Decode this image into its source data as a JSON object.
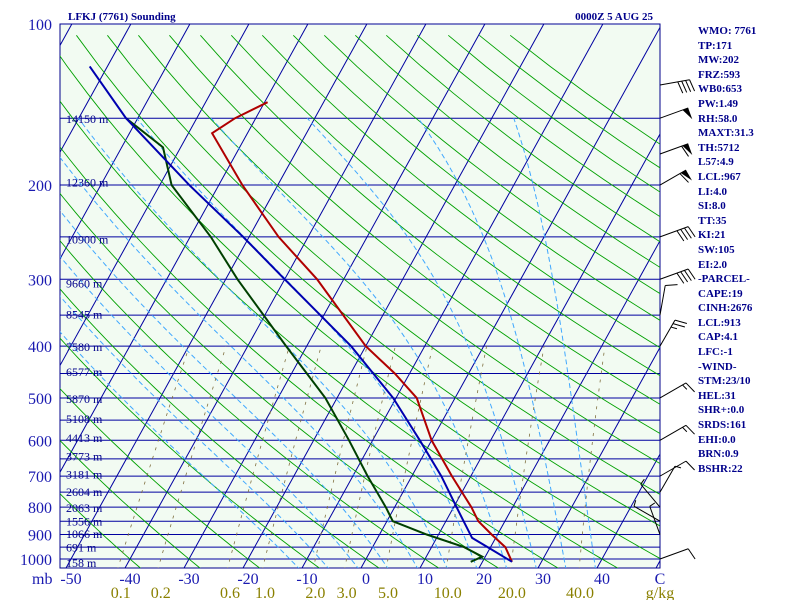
{
  "header": {
    "station_title": "LFKJ (7761) Sounding",
    "time_title": "0000Z  5 AUG 25"
  },
  "indices": [
    "WMO: 7761",
    "TP:171",
    "MW:202",
    "FRZ:593",
    "WB0:653",
    "PW:1.49",
    "RH:58.0",
    "MAXT:31.3",
    "TH:5712",
    "L57:4.9",
    "LCL:967",
    "LI:4.0",
    "SI:8.0",
    "TT:35",
    "KI:21",
    "SW:105",
    "EI:2.0",
    "-PARCEL-",
    "CAPE:19",
    "CINH:2676",
    "LCL:913",
    "CAP:4.1",
    "LFC:-1",
    "-WIND-",
    "STM:23/10",
    "HEL:31",
    "SHR+:0.0",
    "SRDS:161",
    "EHI:0.0",
    "BRN:0.9",
    "BSHR:22"
  ],
  "axis_labels": {
    "pressure_unit": "mb",
    "mixing_ratio_unit": "g/kg"
  },
  "colors": {
    "frame": "#00008b",
    "isobar": "#0000a0",
    "isotherm": "#0000a0",
    "dry_adiabat": "#00a000",
    "moist_adiabat": "#40a8ff",
    "mixing_ratio": "#807040",
    "temperature": "#b00000",
    "dewpoint": "#004000",
    "parcel": "#0000b0",
    "wind_barb": "#000000",
    "plot_background": "#f2fbf2"
  },
  "chart_data": {
    "type": "line",
    "title": "LFKJ (7761) Sounding",
    "subtitle": "0000Z  5 AUG 25",
    "diagram": "skew-T log-P",
    "pressure_range_hPa": [
      1000,
      100
    ],
    "pressure_ticks": [
      "1000",
      "900",
      "800",
      "700",
      "600",
      "500",
      "400",
      "300",
      "200",
      "100"
    ],
    "temperature_ticks": [
      "-50",
      "-40",
      "-30",
      "-20",
      "-10",
      "0",
      "10",
      "20",
      "30",
      "40",
      "C"
    ],
    "mixing_ratio_ticks": [
      "0.1",
      "0.2",
      "0.6",
      "1.0",
      "2.0",
      "3.0",
      "5.0",
      "10.0",
      "20.0",
      "40.0"
    ],
    "height_labels": [
      {
        "p": 1012,
        "label": "158 m"
      },
      {
        "p": 947,
        "label": "691 m"
      },
      {
        "p": 895,
        "label": "1066 m"
      },
      {
        "p": 847,
        "label": "1556 m"
      },
      {
        "p": 800,
        "label": "2063 m"
      },
      {
        "p": 746,
        "label": "2604 m"
      },
      {
        "p": 692,
        "label": "3181 m"
      },
      {
        "p": 640,
        "label": "3773 m"
      },
      {
        "p": 592,
        "label": "4413 m"
      },
      {
        "p": 545,
        "label": "5108 m"
      },
      {
        "p": 500,
        "label": "5870 m"
      },
      {
        "p": 445,
        "label": "6577 m"
      },
      {
        "p": 400,
        "label": "7580 m"
      },
      {
        "p": 348,
        "label": "8545 m"
      },
      {
        "p": 304,
        "label": "9660 m"
      },
      {
        "p": 252,
        "label": "10900 m"
      },
      {
        "p": 197,
        "label": "12360 m"
      },
      {
        "p": 150,
        "label": "14150 m"
      }
    ],
    "series": [
      {
        "key": "temperature",
        "points": [
          {
            "p": 1012,
            "t": 25.0
          },
          {
            "p": 950,
            "t": 22.5
          },
          {
            "p": 900,
            "t": 19.0
          },
          {
            "p": 850,
            "t": 15.5
          },
          {
            "p": 800,
            "t": 13.0
          },
          {
            "p": 700,
            "t": 6.8
          },
          {
            "p": 600,
            "t": 0.0
          },
          {
            "p": 500,
            "t": -6.5
          },
          {
            "p": 450,
            "t": -12.5
          },
          {
            "p": 400,
            "t": -20.0
          },
          {
            "p": 300,
            "t": -34.5
          },
          {
            "p": 250,
            "t": -45.0
          },
          {
            "p": 200,
            "t": -56.0
          },
          {
            "p": 160,
            "t": -66.0
          },
          {
            "p": 150,
            "t": -63.5
          },
          {
            "p": 140,
            "t": -59.5
          }
        ]
      },
      {
        "key": "dewpoint",
        "points": [
          {
            "p": 1012,
            "t": 18.0
          },
          {
            "p": 990,
            "t": 19.5
          },
          {
            "p": 950,
            "t": 15.5
          },
          {
            "p": 900,
            "t": 8.0
          },
          {
            "p": 850,
            "t": 1.0
          },
          {
            "p": 800,
            "t": -1.5
          },
          {
            "p": 700,
            "t": -7.5
          },
          {
            "p": 600,
            "t": -14.0
          },
          {
            "p": 500,
            "t": -22.0
          },
          {
            "p": 400,
            "t": -33.5
          },
          {
            "p": 300,
            "t": -48.0
          },
          {
            "p": 250,
            "t": -56.5
          },
          {
            "p": 200,
            "t": -68.0
          },
          {
            "p": 170,
            "t": -73.0
          },
          {
            "p": 150,
            "t": -82.0
          }
        ]
      },
      {
        "key": "parcel",
        "points": [
          {
            "p": 1012,
            "t": 25.0
          },
          {
            "p": 950,
            "t": 19.5
          },
          {
            "p": 913,
            "t": 16.0
          },
          {
            "p": 850,
            "t": 13.0
          },
          {
            "p": 800,
            "t": 10.5
          },
          {
            "p": 700,
            "t": 5.0
          },
          {
            "p": 600,
            "t": -2.0
          },
          {
            "p": 500,
            "t": -10.5
          },
          {
            "p": 400,
            "t": -22.5
          },
          {
            "p": 300,
            "t": -40.0
          },
          {
            "p": 250,
            "t": -51.0
          },
          {
            "p": 200,
            "t": -65.0
          },
          {
            "p": 150,
            "t": -82.0
          },
          {
            "p": 120,
            "t": -93.0
          }
        ]
      }
    ],
    "wind_barbs": [
      {
        "p": 1000,
        "dir": 70,
        "speed": 10
      },
      {
        "p": 900,
        "dir": 340,
        "speed": 5
      },
      {
        "p": 850,
        "dir": 300,
        "speed": 5
      },
      {
        "p": 800,
        "dir": 320,
        "speed": 5
      },
      {
        "p": 750,
        "dir": 30,
        "speed": 5
      },
      {
        "p": 700,
        "dir": 60,
        "speed": 10
      },
      {
        "p": 600,
        "dir": 60,
        "speed": 15
      },
      {
        "p": 500,
        "dir": 60,
        "speed": 15
      },
      {
        "p": 400,
        "dir": 30,
        "speed": 25
      },
      {
        "p": 350,
        "dir": 10,
        "speed": 10
      },
      {
        "p": 300,
        "dir": 70,
        "speed": 40
      },
      {
        "p": 250,
        "dir": 70,
        "speed": 40
      },
      {
        "p": 200,
        "dir": 60,
        "speed": 60
      },
      {
        "p": 175,
        "dir": 70,
        "speed": 60
      },
      {
        "p": 150,
        "dir": 70,
        "speed": 50
      },
      {
        "p": 130,
        "dir": 80,
        "speed": 40
      }
    ]
  }
}
